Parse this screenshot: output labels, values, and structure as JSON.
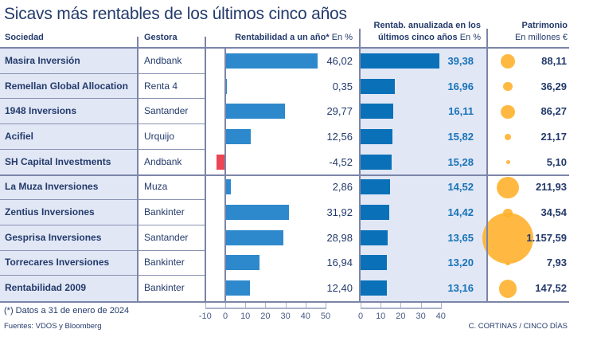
{
  "title": "Sicavs más rentables de los últimos cinco años",
  "headers": {
    "sociedad": "Sociedad",
    "gestora": "Gestora",
    "rent1_label": "Rentabilidad a un año*",
    "rent1_unit": "En %",
    "rent5_line1": "Rentab. anualizada en los",
    "rent5_line2_label": "últimos cinco años",
    "rent5_unit": "En %",
    "patrimonio": "Patrimonio",
    "patrimonio_unit": "En millones €"
  },
  "rows": [
    {
      "sociedad": "Masira Inversión",
      "gestora": "Andbank",
      "rent1": 46.02,
      "rent1_text": "46,02",
      "rent5": 39.38,
      "rent5_text": "39,38",
      "patrimonio": 88.11,
      "patrimonio_text": "88,11"
    },
    {
      "sociedad": "Remellan Global Allocation",
      "gestora": "Renta 4",
      "rent1": 0.35,
      "rent1_text": "0,35",
      "rent5": 16.96,
      "rent5_text": "16,96",
      "patrimonio": 36.29,
      "patrimonio_text": "36,29"
    },
    {
      "sociedad": "1948 Inversions",
      "gestora": "Santander",
      "rent1": 29.77,
      "rent1_text": "29,77",
      "rent5": 16.11,
      "rent5_text": "16,11",
      "patrimonio": 86.27,
      "patrimonio_text": "86,27"
    },
    {
      "sociedad": "Acifiel",
      "gestora": "Urquijo",
      "rent1": 12.56,
      "rent1_text": "12,56",
      "rent5": 15.82,
      "rent5_text": "15,82",
      "patrimonio": 21.17,
      "patrimonio_text": "21,17"
    },
    {
      "sociedad": "SH Capital Investments",
      "gestora": "Andbank",
      "rent1": -4.52,
      "rent1_text": "-4,52",
      "rent5": 15.28,
      "rent5_text": "15,28",
      "patrimonio": 5.1,
      "patrimonio_text": "5,10"
    },
    {
      "sociedad": "La Muza Inversiones",
      "gestora": "Muza",
      "rent1": 2.86,
      "rent1_text": "2,86",
      "rent5": 14.52,
      "rent5_text": "14,52",
      "patrimonio": 211.93,
      "patrimonio_text": "211,93"
    },
    {
      "sociedad": "Zentius Inversiones",
      "gestora": "Bankinter",
      "rent1": 31.92,
      "rent1_text": "31,92",
      "rent5": 14.42,
      "rent5_text": "14,42",
      "patrimonio": 34.54,
      "patrimonio_text": "34,54"
    },
    {
      "sociedad": "Gesprisa Inversiones",
      "gestora": "Santander",
      "rent1": 28.98,
      "rent1_text": "28,98",
      "rent5": 13.65,
      "rent5_text": "13,65",
      "patrimonio": 1157.59,
      "patrimonio_text": "1.157,59"
    },
    {
      "sociedad": "Torrecares Inversiones",
      "gestora": "Bankinter",
      "rent1": 16.94,
      "rent1_text": "16,94",
      "rent5": 13.2,
      "rent5_text": "13,20",
      "patrimonio": 7.93,
      "patrimonio_text": "7,93"
    },
    {
      "sociedad": "Rentabilidad 2009",
      "gestora": "Bankinter",
      "rent1": 12.4,
      "rent1_text": "12,40",
      "rent5": 13.16,
      "rent5_text": "13,16",
      "patrimonio": 147.52,
      "patrimonio_text": "147,52"
    }
  ],
  "axis1_ticks": [
    "-10",
    "0",
    "10",
    "20",
    "30",
    "40",
    "50"
  ],
  "axis2_ticks": [
    "0",
    "10",
    "20",
    "30",
    "40"
  ],
  "footnote": "(*) Datos a 31 de enero de 2024",
  "sources": "Fuentes: VDOS y Bloomberg",
  "credit": "C. CORTINAS / CINCO DÍAS",
  "colors": {
    "positive_bar": "#2e89cc",
    "negative_bar": "#ec4654",
    "five_year_bar": "#0a71b9",
    "bubble": "#ffb12f",
    "highlight_bg": "#e1e7f5",
    "text": "#233a6b"
  },
  "chart_data": [
    {
      "type": "bar",
      "title": "Rentabilidad a un año* (En %)",
      "categories": [
        "Masira Inversión",
        "Remellan Global Allocation",
        "1948 Inversions",
        "Acifiel",
        "SH Capital Investments",
        "La Muza Inversiones",
        "Zentius Inversiones",
        "Gesprisa Inversiones",
        "Torrecares Inversiones",
        "Rentabilidad 2009"
      ],
      "values": [
        46.02,
        0.35,
        29.77,
        12.56,
        -4.52,
        2.86,
        31.92,
        28.98,
        16.94,
        12.4
      ],
      "xlim": [
        -10,
        50
      ],
      "orientation": "horizontal"
    },
    {
      "type": "bar",
      "title": "Rentab. anualizada en los últimos cinco años (En %)",
      "categories": [
        "Masira Inversión",
        "Remellan Global Allocation",
        "1948 Inversions",
        "Acifiel",
        "SH Capital Investments",
        "La Muza Inversiones",
        "Zentius Inversiones",
        "Gesprisa Inversiones",
        "Torrecares Inversiones",
        "Rentabilidad 2009"
      ],
      "values": [
        39.38,
        16.96,
        16.11,
        15.82,
        15.28,
        14.52,
        14.42,
        13.65,
        13.2,
        13.16
      ],
      "xlim": [
        0,
        40
      ],
      "orientation": "horizontal"
    },
    {
      "type": "scatter",
      "title": "Patrimonio (En millones €)",
      "categories": [
        "Masira Inversión",
        "Remellan Global Allocation",
        "1948 Inversions",
        "Acifiel",
        "SH Capital Investments",
        "La Muza Inversiones",
        "Zentius Inversiones",
        "Gesprisa Inversiones",
        "Torrecares Inversiones",
        "Rentabilidad 2009"
      ],
      "values": [
        88.11,
        36.29,
        86.27,
        21.17,
        5.1,
        211.93,
        34.54,
        1157.59,
        7.93,
        147.52
      ],
      "encoding": "bubble area proportional to value"
    }
  ]
}
